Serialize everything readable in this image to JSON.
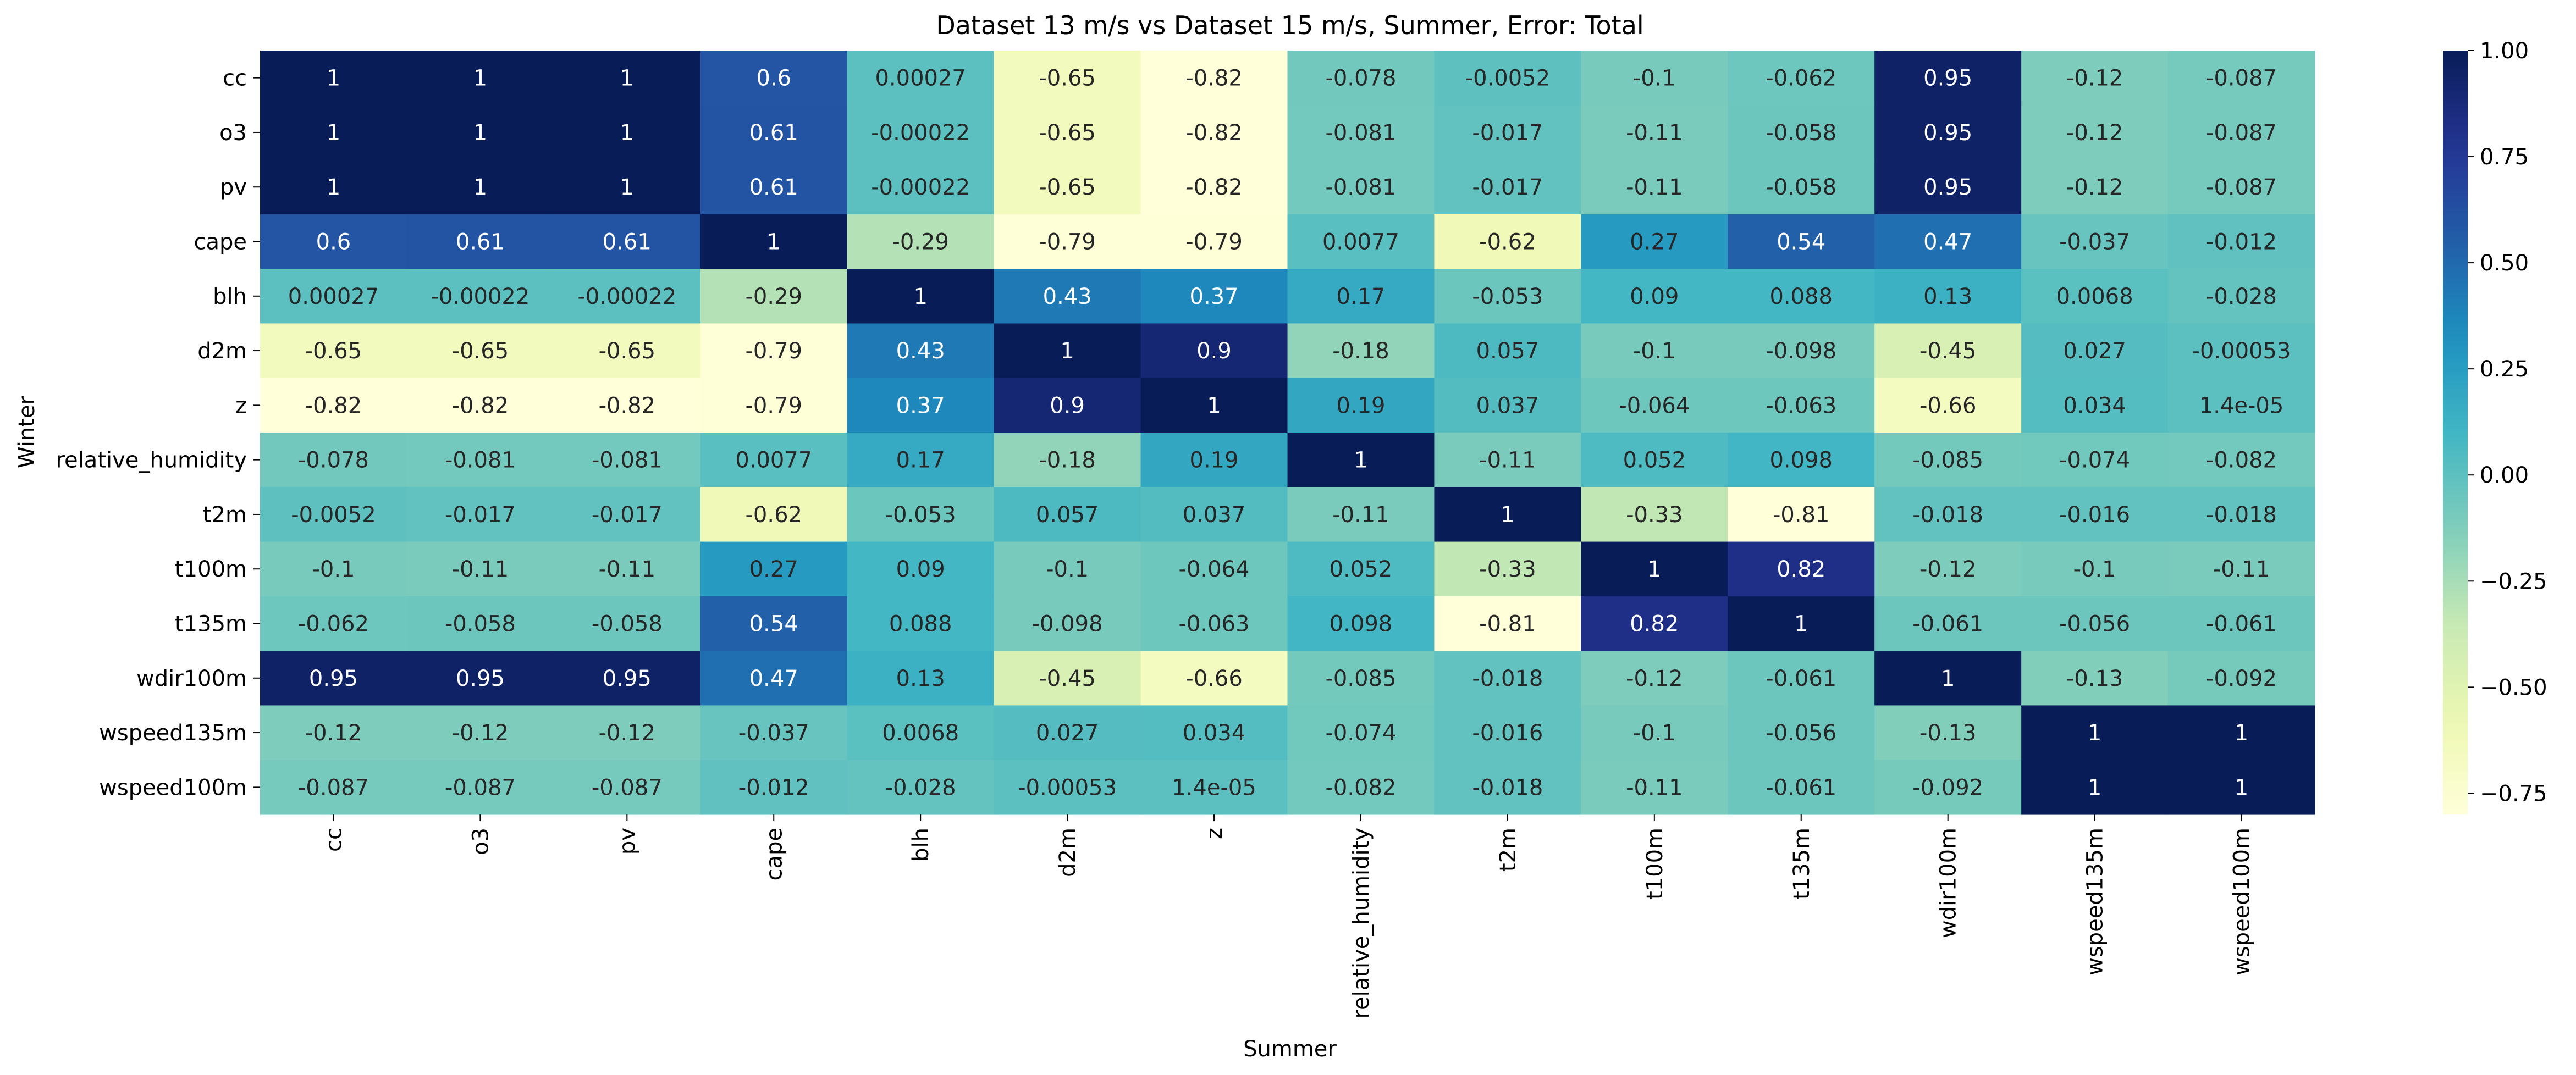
{
  "chart_data": {
    "type": "heatmap",
    "title": "Dataset 13 m/s vs Dataset 15 m/s, Summer, Error: Total",
    "xlabel": "Summer",
    "ylabel": "Winter",
    "colormap": "YlGnBu",
    "vmin": -0.8,
    "vmax": 1.0,
    "colorbar_ticks": [
      "1.00",
      "0.75",
      "0.50",
      "0.25",
      "0.00",
      "−0.25",
      "−0.50",
      "−0.75"
    ],
    "colorbar_tick_values": [
      1.0,
      0.75,
      0.5,
      0.25,
      0.0,
      -0.25,
      -0.5,
      -0.75
    ],
    "x_categories": [
      "cc",
      "o3",
      "pv",
      "cape",
      "blh",
      "d2m",
      "z",
      "relative_humidity",
      "t2m",
      "t100m",
      "t135m",
      "wdir100m",
      "wspeed135m",
      "wspeed100m"
    ],
    "y_categories": [
      "cc",
      "o3",
      "pv",
      "cape",
      "blh",
      "d2m",
      "z",
      "relative_humidity",
      "t2m",
      "t100m",
      "t135m",
      "wdir100m",
      "wspeed135m",
      "wspeed100m"
    ],
    "values": [
      [
        1,
        1,
        1,
        0.6,
        0.00027,
        -0.65,
        -0.82,
        -0.078,
        -0.0052,
        -0.1,
        -0.062,
        0.95,
        -0.12,
        -0.087
      ],
      [
        1,
        1,
        1,
        0.61,
        -0.00022,
        -0.65,
        -0.82,
        -0.081,
        -0.017,
        -0.11,
        -0.058,
        0.95,
        -0.12,
        -0.087
      ],
      [
        1,
        1,
        1,
        0.61,
        -0.00022,
        -0.65,
        -0.82,
        -0.081,
        -0.017,
        -0.11,
        -0.058,
        0.95,
        -0.12,
        -0.087
      ],
      [
        0.6,
        0.61,
        0.61,
        1,
        -0.29,
        -0.79,
        -0.79,
        0.0077,
        -0.62,
        0.27,
        0.54,
        0.47,
        -0.037,
        -0.012
      ],
      [
        0.00027,
        -0.00022,
        -0.00022,
        -0.29,
        1,
        0.43,
        0.37,
        0.17,
        -0.053,
        0.09,
        0.088,
        0.13,
        0.0068,
        -0.028
      ],
      [
        -0.65,
        -0.65,
        -0.65,
        -0.79,
        0.43,
        1,
        0.9,
        -0.18,
        0.057,
        -0.1,
        -0.098,
        -0.45,
        0.027,
        -0.00053
      ],
      [
        -0.82,
        -0.82,
        -0.82,
        -0.79,
        0.37,
        0.9,
        1,
        0.19,
        0.037,
        -0.064,
        -0.063,
        -0.66,
        0.034,
        1.4e-05
      ],
      [
        -0.078,
        -0.081,
        -0.081,
        0.0077,
        0.17,
        -0.18,
        0.19,
        1,
        -0.11,
        0.052,
        0.098,
        -0.085,
        -0.074,
        -0.082
      ],
      [
        -0.0052,
        -0.017,
        -0.017,
        -0.62,
        -0.053,
        0.057,
        0.037,
        -0.11,
        1,
        -0.33,
        -0.81,
        -0.018,
        -0.016,
        -0.018
      ],
      [
        -0.1,
        -0.11,
        -0.11,
        0.27,
        0.09,
        -0.1,
        -0.064,
        0.052,
        -0.33,
        1,
        0.82,
        -0.12,
        -0.1,
        -0.11
      ],
      [
        -0.062,
        -0.058,
        -0.058,
        0.54,
        0.088,
        -0.098,
        -0.063,
        0.098,
        -0.81,
        0.82,
        1,
        -0.061,
        -0.056,
        -0.061
      ],
      [
        0.95,
        0.95,
        0.95,
        0.47,
        0.13,
        -0.45,
        -0.66,
        -0.085,
        -0.018,
        -0.12,
        -0.061,
        1,
        -0.13,
        -0.092
      ],
      [
        -0.12,
        -0.12,
        -0.12,
        -0.037,
        0.0068,
        0.027,
        0.034,
        -0.074,
        -0.016,
        -0.1,
        -0.056,
        -0.13,
        1,
        1
      ],
      [
        -0.087,
        -0.087,
        -0.087,
        -0.012,
        -0.028,
        -0.00053,
        1.4e-05,
        -0.082,
        -0.018,
        -0.11,
        -0.061,
        -0.092,
        1,
        1
      ]
    ],
    "annotations": [
      [
        "1",
        "1",
        "1",
        "0.6",
        "0.00027",
        "-0.65",
        "-0.82",
        "-0.078",
        "-0.0052",
        "-0.1",
        "-0.062",
        "0.95",
        "-0.12",
        "-0.087"
      ],
      [
        "1",
        "1",
        "1",
        "0.61",
        "-0.00022",
        "-0.65",
        "-0.82",
        "-0.081",
        "-0.017",
        "-0.11",
        "-0.058",
        "0.95",
        "-0.12",
        "-0.087"
      ],
      [
        "1",
        "1",
        "1",
        "0.61",
        "-0.00022",
        "-0.65",
        "-0.82",
        "-0.081",
        "-0.017",
        "-0.11",
        "-0.058",
        "0.95",
        "-0.12",
        "-0.087"
      ],
      [
        "0.6",
        "0.61",
        "0.61",
        "1",
        "-0.29",
        "-0.79",
        "-0.79",
        "0.0077",
        "-0.62",
        "0.27",
        "0.54",
        "0.47",
        "-0.037",
        "-0.012"
      ],
      [
        "0.00027",
        "-0.00022",
        "-0.00022",
        "-0.29",
        "1",
        "0.43",
        "0.37",
        "0.17",
        "-0.053",
        "0.09",
        "0.088",
        "0.13",
        "0.0068",
        "-0.028"
      ],
      [
        "-0.65",
        "-0.65",
        "-0.65",
        "-0.79",
        "0.43",
        "1",
        "0.9",
        "-0.18",
        "0.057",
        "-0.1",
        "-0.098",
        "-0.45",
        "0.027",
        "-0.00053"
      ],
      [
        "-0.82",
        "-0.82",
        "-0.82",
        "-0.79",
        "0.37",
        "0.9",
        "1",
        "0.19",
        "0.037",
        "-0.064",
        "-0.063",
        "-0.66",
        "0.034",
        "1.4e-05"
      ],
      [
        "-0.078",
        "-0.081",
        "-0.081",
        "0.0077",
        "0.17",
        "-0.18",
        "0.19",
        "1",
        "-0.11",
        "0.052",
        "0.098",
        "-0.085",
        "-0.074",
        "-0.082"
      ],
      [
        "-0.0052",
        "-0.017",
        "-0.017",
        "-0.62",
        "-0.053",
        "0.057",
        "0.037",
        "-0.11",
        "1",
        "-0.33",
        "-0.81",
        "-0.018",
        "-0.016",
        "-0.018"
      ],
      [
        "-0.1",
        "-0.11",
        "-0.11",
        "0.27",
        "0.09",
        "-0.1",
        "-0.064",
        "0.052",
        "-0.33",
        "1",
        "0.82",
        "-0.12",
        "-0.1",
        "-0.11"
      ],
      [
        "-0.062",
        "-0.058",
        "-0.058",
        "0.54",
        "0.088",
        "-0.098",
        "-0.063",
        "0.098",
        "-0.81",
        "0.82",
        "1",
        "-0.061",
        "-0.056",
        "-0.061"
      ],
      [
        "0.95",
        "0.95",
        "0.95",
        "0.47",
        "0.13",
        "-0.45",
        "-0.66",
        "-0.085",
        "-0.018",
        "-0.12",
        "-0.061",
        "1",
        "-0.13",
        "-0.092"
      ],
      [
        "-0.12",
        "-0.12",
        "-0.12",
        "-0.037",
        "0.0068",
        "0.027",
        "0.034",
        "-0.074",
        "-0.016",
        "-0.1",
        "-0.056",
        "-0.13",
        "1",
        "1"
      ],
      [
        "-0.087",
        "-0.087",
        "-0.087",
        "-0.012",
        "-0.028",
        "-0.00053",
        "1.4e-05",
        "-0.082",
        "-0.018",
        "-0.11",
        "-0.061",
        "-0.092",
        "1",
        "1"
      ]
    ]
  }
}
